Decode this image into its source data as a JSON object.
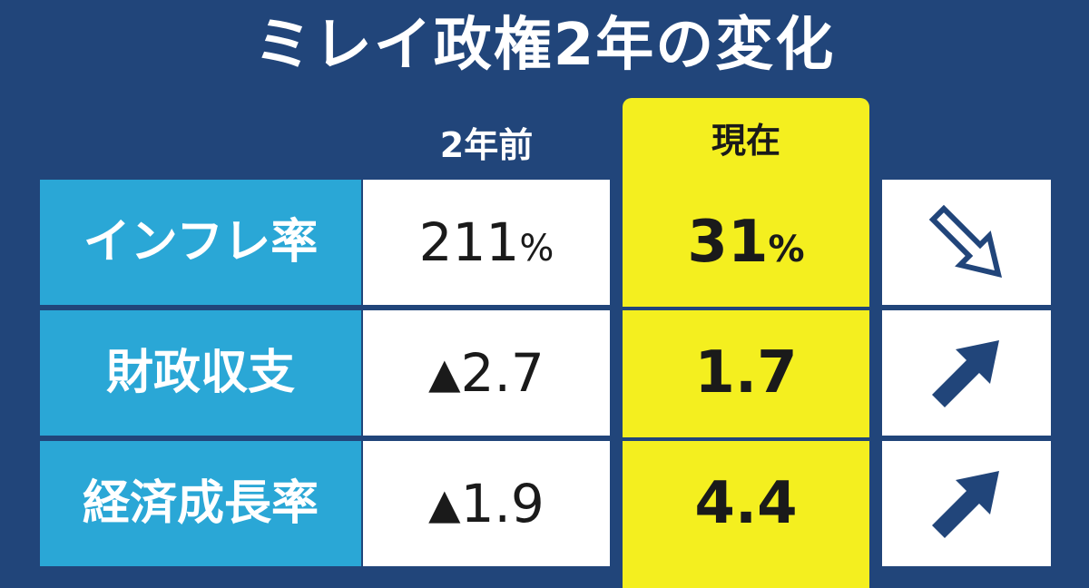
{
  "title": "ミレイ政権2年の変化",
  "columns": {
    "before": "2年前",
    "now": "現在"
  },
  "rows": [
    {
      "label": "インフレ率",
      "before_value": "211",
      "before_unit": "%",
      "before_prefix": "",
      "now_value": "31",
      "now_unit": "%",
      "trend": "down-right-outline-arrow-icon"
    },
    {
      "label": "財政収支",
      "before_prefix": "▲",
      "before_value": "2.7",
      "before_unit": "",
      "now_value": "1.7",
      "now_unit": "",
      "trend": "up-right-arrow-icon"
    },
    {
      "label": "経済成長率",
      "before_prefix": "▲",
      "before_value": "1.9",
      "before_unit": "",
      "now_value": "4.4",
      "now_unit": "",
      "trend": "up-right-arrow-icon"
    }
  ],
  "colors": {
    "background": "#21457a",
    "label_bg": "#2aa7d6",
    "highlight": "#f4ef1f",
    "arrow": "#21457a"
  }
}
